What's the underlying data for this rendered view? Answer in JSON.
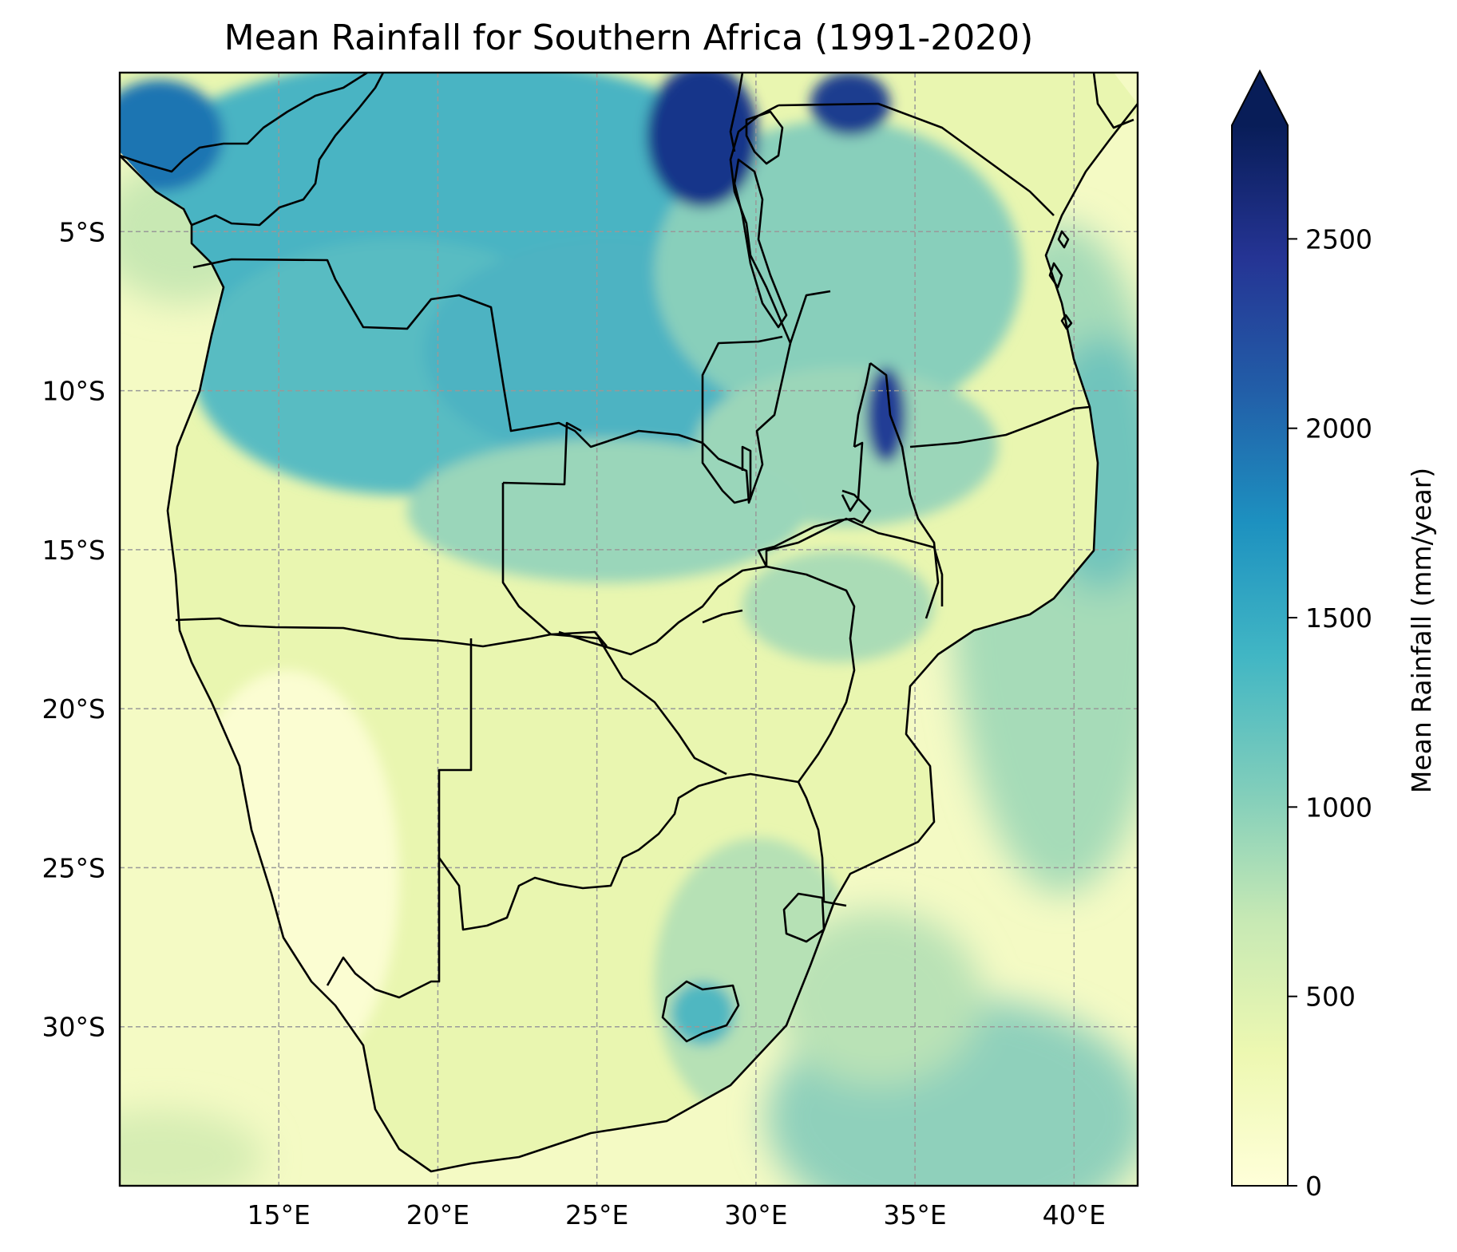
{
  "title": "Mean Rainfall for Southern Africa (1991-2020)",
  "map": {
    "projection": "PlateCarree",
    "lon_range": [
      10,
      42
    ],
    "lat_range": [
      -35,
      0
    ],
    "gridlines": "dashed grey",
    "x_ticks": [
      {
        "value": 15,
        "label": "15°E"
      },
      {
        "value": 20,
        "label": "20°E"
      },
      {
        "value": 25,
        "label": "25°E"
      },
      {
        "value": 30,
        "label": "30°E"
      },
      {
        "value": 35,
        "label": "35°E"
      },
      {
        "value": 40,
        "label": "40°E"
      }
    ],
    "y_ticks": [
      {
        "value": -5,
        "label": "5°S"
      },
      {
        "value": -10,
        "label": "10°S"
      },
      {
        "value": -15,
        "label": "15°S"
      },
      {
        "value": -20,
        "label": "20°S"
      },
      {
        "value": -25,
        "label": "25°S"
      },
      {
        "value": -30,
        "label": "30°S"
      }
    ]
  },
  "colorbar": {
    "label": "Mean Rainfall (mm/year)",
    "colormap": "YlGnBu",
    "range": [
      0,
      2800
    ],
    "extend": "max",
    "ticks": [
      {
        "value": 0,
        "label": "0"
      },
      {
        "value": 500,
        "label": "500"
      },
      {
        "value": 1000,
        "label": "1000"
      },
      {
        "value": 1500,
        "label": "1500"
      },
      {
        "value": 2000,
        "label": "2000"
      },
      {
        "value": 2500,
        "label": "2500"
      }
    ],
    "colors": [
      "#ffffd9",
      "#edf8b1",
      "#c7e9b4",
      "#7fcdbb",
      "#41b6c4",
      "#1d91c0",
      "#225ea8",
      "#253494",
      "#081d58"
    ]
  },
  "colors": {
    "ocean_low": "#f5fbc6",
    "ocean_mid": "#c9e9b5",
    "border": "#000000",
    "grid": "#999999"
  }
}
